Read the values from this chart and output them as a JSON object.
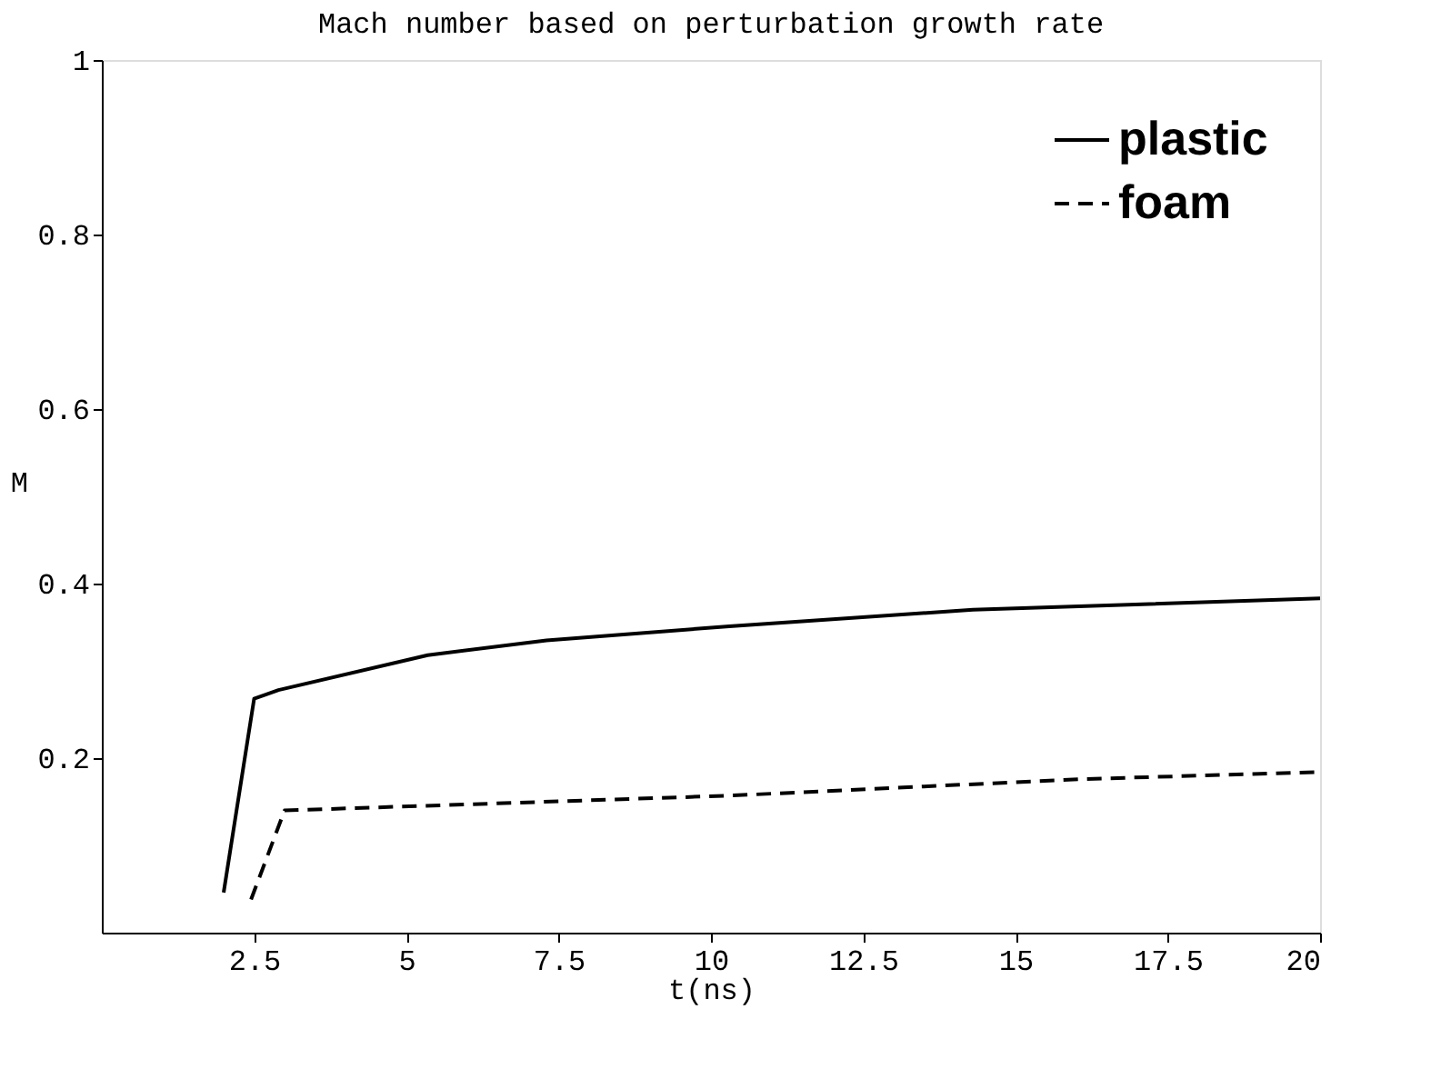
{
  "chart_data": {
    "type": "line",
    "title": "Mach number based on perturbation growth rate",
    "xlabel": "t(ns)",
    "ylabel": "M",
    "xlim": [
      0,
      20
    ],
    "ylim": [
      0,
      1
    ],
    "xticks": [
      2.5,
      5,
      7.5,
      10,
      12.5,
      15,
      17.5,
      20
    ],
    "yticks": [
      0.2,
      0.4,
      0.6,
      0.8,
      1
    ],
    "grid": false,
    "legend": "top right",
    "marker": "none",
    "series": [
      {
        "name": "plastic",
        "color": "#000000",
        "line_style": "solid",
        "x": [
          2.0,
          2.5,
          2.9,
          5.35,
          7.3,
          10.3,
          14.3,
          20
        ],
        "values": [
          0.046,
          0.268,
          0.278,
          0.318,
          0.335,
          0.351,
          0.37,
          0.383
        ]
      },
      {
        "name": "foam",
        "color": "#000000",
        "line_style": "dashed",
        "x": [
          2.45,
          3.0,
          10.3,
          16.1,
          20
        ],
        "values": [
          0.038,
          0.14,
          0.157,
          0.176,
          0.184
        ]
      }
    ]
  }
}
